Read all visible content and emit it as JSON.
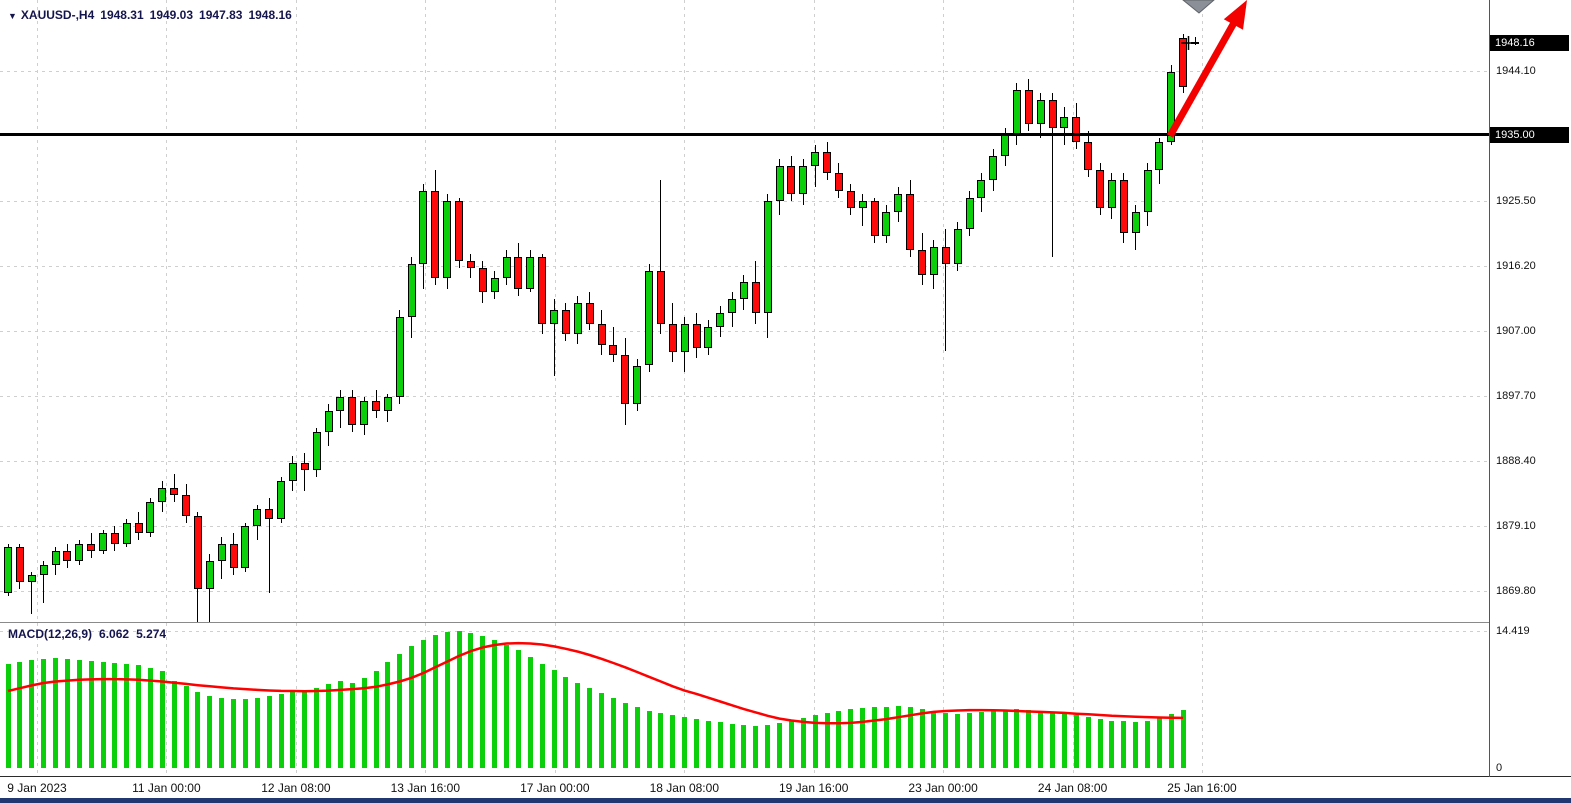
{
  "header": {
    "symbol_timeframe": "XAUUSD-,H4",
    "open": "1948.31",
    "high": "1949.03",
    "low": "1947.83",
    "close": "1948.16"
  },
  "macd": {
    "name": "MACD(12,26,9)",
    "value": "6.062",
    "signal": "5.274"
  },
  "price_axis": {
    "ticks": [
      "1944.10",
      "1925.50",
      "1916.20",
      "1907.00",
      "1897.70",
      "1888.40",
      "1879.10",
      "1869.80"
    ],
    "current_badge": "1948.16",
    "line_badge": "1935.00"
  },
  "macd_axis": {
    "ticks": [
      "14.419",
      "0"
    ]
  },
  "time_axis": {
    "labels": [
      "9 Jan 2023",
      "11 Jan 00:00",
      "12 Jan 08:00",
      "13 Jan 16:00",
      "17 Jan 00:00",
      "18 Jan 08:00",
      "19 Jan 16:00",
      "23 Jan 00:00",
      "24 Jan 08:00",
      "25 Jan 16:00"
    ]
  },
  "colors": {
    "up": "#0ccf0c",
    "down": "#ff0a0a",
    "wick": "#000000",
    "signal_line": "#ff0000",
    "arrow": "#f30000",
    "hline": "#000000",
    "grid": "#cfcfcf",
    "badge_bg": "#000000",
    "badge_text": "#ffffff",
    "title_text": "#15154e",
    "bottom_strip": "#21376f",
    "gray_pointer": "#8a8f98"
  },
  "chart_data": [
    {
      "type": "candlestick",
      "title": "XAUUSD- H4",
      "ylim": [
        1865.3,
        1954.3
      ],
      "y_ticks": [
        1944.1,
        1925.5,
        1916.2,
        1907.0,
        1897.7,
        1888.4,
        1879.1,
        1869.8
      ],
      "horizontal_line": 1935.0,
      "current_price": 1948.16,
      "current_bar": {
        "open": 1948.31,
        "high": 1949.03,
        "low": 1947.83,
        "close": 1948.16
      },
      "x_labels": [
        "9 Jan 2023",
        "11 Jan 00:00",
        "12 Jan 08:00",
        "13 Jan 16:00",
        "17 Jan 00:00",
        "18 Jan 08:00",
        "19 Jan 16:00",
        "23 Jan 00:00",
        "24 Jan 08:00",
        "25 Jan 16:00"
      ],
      "candles": [
        [
          1869.5,
          1876.5,
          1869.0,
          1876.0
        ],
        [
          1876.0,
          1876.5,
          1870.0,
          1871.0
        ],
        [
          1871.0,
          1872.5,
          1866.5,
          1872.0
        ],
        [
          1872.0,
          1874.0,
          1868.0,
          1873.5
        ],
        [
          1873.5,
          1876.0,
          1872.0,
          1875.5
        ],
        [
          1875.5,
          1876.5,
          1873.0,
          1874.0
        ],
        [
          1874.0,
          1877.0,
          1873.5,
          1876.5
        ],
        [
          1876.5,
          1878.0,
          1874.5,
          1875.5
        ],
        [
          1875.5,
          1878.5,
          1875.0,
          1878.0
        ],
        [
          1878.0,
          1879.0,
          1875.5,
          1876.5
        ],
        [
          1876.5,
          1880.0,
          1876.0,
          1879.5
        ],
        [
          1879.5,
          1881.0,
          1877.0,
          1878.0
        ],
        [
          1878.0,
          1883.0,
          1877.5,
          1882.5
        ],
        [
          1882.5,
          1885.5,
          1881.0,
          1884.5
        ],
        [
          1884.5,
          1886.5,
          1882.5,
          1883.5
        ],
        [
          1883.5,
          1885.0,
          1879.5,
          1880.5
        ],
        [
          1880.5,
          1881.0,
          1864.0,
          1870.0
        ],
        [
          1870.0,
          1875.0,
          1862.5,
          1874.0
        ],
        [
          1874.0,
          1877.5,
          1871.5,
          1876.5
        ],
        [
          1876.5,
          1878.0,
          1872.0,
          1873.0
        ],
        [
          1873.0,
          1879.5,
          1872.5,
          1879.0
        ],
        [
          1879.0,
          1882.0,
          1877.0,
          1881.5
        ],
        [
          1881.5,
          1883.0,
          1869.5,
          1880.0
        ],
        [
          1880.0,
          1886.0,
          1879.5,
          1885.5
        ],
        [
          1885.5,
          1889.0,
          1884.0,
          1888.0
        ],
        [
          1888.0,
          1889.5,
          1884.0,
          1887.0
        ],
        [
          1887.0,
          1893.0,
          1886.0,
          1892.5
        ],
        [
          1892.5,
          1896.5,
          1890.5,
          1895.5
        ],
        [
          1895.5,
          1898.5,
          1893.0,
          1897.5
        ],
        [
          1897.5,
          1898.5,
          1892.5,
          1893.5
        ],
        [
          1893.5,
          1897.5,
          1892.0,
          1897.0
        ],
        [
          1897.0,
          1898.5,
          1894.5,
          1895.5
        ],
        [
          1895.5,
          1898.0,
          1894.0,
          1897.5
        ],
        [
          1897.5,
          1910.0,
          1896.5,
          1909.0
        ],
        [
          1909.0,
          1917.5,
          1906.0,
          1916.5
        ],
        [
          1916.5,
          1928.0,
          1913.0,
          1927.0
        ],
        [
          1927.0,
          1930.0,
          1913.5,
          1914.5
        ],
        [
          1914.5,
          1926.5,
          1913.0,
          1925.5
        ],
        [
          1925.5,
          1926.0,
          1916.0,
          1917.0
        ],
        [
          1917.0,
          1918.0,
          1914.5,
          1916.0
        ],
        [
          1916.0,
          1917.0,
          1911.0,
          1912.5
        ],
        [
          1912.5,
          1915.5,
          1911.5,
          1914.5
        ],
        [
          1914.5,
          1918.5,
          1913.5,
          1917.5
        ],
        [
          1917.5,
          1919.5,
          1912.0,
          1913.0
        ],
        [
          1913.0,
          1918.5,
          1912.5,
          1917.5
        ],
        [
          1917.5,
          1918.0,
          1906.5,
          1908.0
        ],
        [
          1908.0,
          1911.5,
          1900.5,
          1910.0
        ],
        [
          1910.0,
          1911.0,
          1905.5,
          1906.5
        ],
        [
          1906.5,
          1912.0,
          1905.0,
          1911.0
        ],
        [
          1911.0,
          1912.5,
          1907.0,
          1908.0
        ],
        [
          1908.0,
          1910.0,
          1903.5,
          1905.0
        ],
        [
          1905.0,
          1907.5,
          1902.5,
          1903.5
        ],
        [
          1903.5,
          1906.0,
          1893.5,
          1896.5
        ],
        [
          1896.5,
          1903.0,
          1895.5,
          1902.0
        ],
        [
          1902.0,
          1916.5,
          1901.0,
          1915.5
        ],
        [
          1915.5,
          1928.5,
          1906.5,
          1908.0
        ],
        [
          1908.0,
          1911.0,
          1902.5,
          1904.0
        ],
        [
          1904.0,
          1909.0,
          1901.0,
          1908.0
        ],
        [
          1908.0,
          1909.5,
          1903.0,
          1904.5
        ],
        [
          1904.5,
          1908.5,
          1903.5,
          1907.5
        ],
        [
          1907.5,
          1910.5,
          1906.0,
          1909.5
        ],
        [
          1909.5,
          1912.5,
          1907.5,
          1911.5
        ],
        [
          1911.5,
          1915.0,
          1910.0,
          1914.0
        ],
        [
          1914.0,
          1917.0,
          1908.0,
          1909.5
        ],
        [
          1909.5,
          1926.5,
          1906.0,
          1925.5
        ],
        [
          1925.5,
          1931.5,
          1923.5,
          1930.5
        ],
        [
          1930.5,
          1932.0,
          1925.5,
          1926.5
        ],
        [
          1926.5,
          1931.5,
          1925.0,
          1930.5
        ],
        [
          1930.5,
          1933.5,
          1927.5,
          1932.5
        ],
        [
          1932.5,
          1934.0,
          1928.5,
          1929.5
        ],
        [
          1929.5,
          1931.0,
          1926.0,
          1927.0
        ],
        [
          1927.0,
          1928.0,
          1923.5,
          1924.5
        ],
        [
          1924.5,
          1926.5,
          1922.0,
          1925.5
        ],
        [
          1925.5,
          1926.0,
          1919.5,
          1920.5
        ],
        [
          1920.5,
          1925.0,
          1919.5,
          1924.0
        ],
        [
          1924.0,
          1927.5,
          1922.5,
          1926.5
        ],
        [
          1926.5,
          1928.5,
          1917.5,
          1918.5
        ],
        [
          1918.5,
          1921.0,
          1913.5,
          1915.0
        ],
        [
          1915.0,
          1920.0,
          1913.0,
          1919.0
        ],
        [
          1919.0,
          1921.5,
          1904.0,
          1916.5
        ],
        [
          1916.5,
          1922.5,
          1915.5,
          1921.5
        ],
        [
          1921.5,
          1927.0,
          1920.5,
          1926.0
        ],
        [
          1926.0,
          1929.5,
          1924.0,
          1928.5
        ],
        [
          1928.5,
          1933.0,
          1927.0,
          1932.0
        ],
        [
          1932.0,
          1936.0,
          1930.5,
          1935.0
        ],
        [
          1935.0,
          1942.5,
          1933.5,
          1941.5
        ],
        [
          1941.5,
          1943.0,
          1935.5,
          1936.5
        ],
        [
          1936.5,
          1941.0,
          1934.5,
          1940.0
        ],
        [
          1940.0,
          1941.0,
          1917.5,
          1936.0
        ],
        [
          1936.0,
          1939.0,
          1933.5,
          1937.5
        ],
        [
          1937.5,
          1939.5,
          1933.0,
          1934.0
        ],
        [
          1934.0,
          1935.5,
          1929.0,
          1930.0
        ],
        [
          1930.0,
          1931.0,
          1923.5,
          1924.5
        ],
        [
          1924.5,
          1929.5,
          1923.0,
          1928.5
        ],
        [
          1928.5,
          1929.5,
          1919.5,
          1921.0
        ],
        [
          1921.0,
          1925.0,
          1918.5,
          1924.0
        ],
        [
          1924.0,
          1931.0,
          1922.0,
          1930.0
        ],
        [
          1930.0,
          1934.5,
          1928.0,
          1934.0
        ],
        [
          1934.0,
          1945.0,
          1933.5,
          1944.0
        ],
        [
          1948.9,
          1949.5,
          1941.0,
          1941.8
        ],
        [
          1948.31,
          1949.03,
          1947.83,
          1948.16
        ]
      ]
    },
    {
      "type": "bar",
      "name": "MACD(12,26,9)",
      "ylim": [
        0,
        14.419
      ],
      "ticks": [
        14.419,
        0
      ],
      "current": {
        "macd": 6.062,
        "signal": 5.274
      },
      "histogram": [
        11.0,
        11.2,
        11.4,
        11.5,
        11.6,
        11.5,
        11.4,
        11.3,
        11.2,
        11.1,
        11.0,
        10.8,
        10.5,
        10.2,
        9.2,
        8.6,
        8.0,
        7.6,
        7.4,
        7.3,
        7.3,
        7.4,
        7.6,
        7.8,
        8.1,
        8.0,
        8.4,
        8.8,
        9.2,
        9.0,
        9.5,
        10.2,
        11.2,
        12.0,
        12.8,
        13.5,
        14.0,
        14.3,
        14.419,
        14.2,
        13.9,
        13.5,
        13.0,
        12.4,
        11.7,
        11.0,
        10.3,
        9.6,
        9.0,
        8.4,
        7.9,
        7.4,
        6.9,
        6.4,
        6.0,
        5.8,
        5.6,
        5.4,
        5.2,
        5.0,
        4.8,
        4.6,
        4.5,
        4.4,
        4.5,
        4.7,
        5.0,
        5.3,
        5.6,
        5.8,
        6.0,
        6.2,
        6.3,
        6.4,
        6.4,
        6.5,
        6.4,
        6.2,
        6.0,
        5.8,
        5.7,
        5.8,
        5.9,
        6.0,
        6.1,
        6.2,
        6.1,
        6.0,
        5.9,
        5.8,
        5.6,
        5.4,
        5.2,
        5.0,
        4.9,
        4.8,
        5.0,
        5.3,
        5.7,
        6.062
      ],
      "signal": [
        8.1,
        8.4,
        8.7,
        8.95,
        9.1,
        9.2,
        9.28,
        9.33,
        9.36,
        9.36,
        9.33,
        9.28,
        9.2,
        9.1,
        8.98,
        8.85,
        8.72,
        8.6,
        8.48,
        8.38,
        8.3,
        8.22,
        8.16,
        8.12,
        8.1,
        8.08,
        8.1,
        8.15,
        8.22,
        8.3,
        8.4,
        8.55,
        8.8,
        9.1,
        9.5,
        10.0,
        10.6,
        11.2,
        11.8,
        12.3,
        12.7,
        12.95,
        13.1,
        13.15,
        13.1,
        13.0,
        12.8,
        12.55,
        12.25,
        11.9,
        11.5,
        11.05,
        10.6,
        10.1,
        9.6,
        9.1,
        8.6,
        8.15,
        7.8,
        7.4,
        7.0,
        6.6,
        6.2,
        5.85,
        5.5,
        5.2,
        5.0,
        4.85,
        4.75,
        4.7,
        4.7,
        4.75,
        4.85,
        5.0,
        5.15,
        5.35,
        5.55,
        5.75,
        5.9,
        6.0,
        6.05,
        6.1,
        6.1,
        6.08,
        6.05,
        6.0,
        5.95,
        5.9,
        5.85,
        5.8,
        5.72,
        5.65,
        5.58,
        5.5,
        5.45,
        5.4,
        5.36,
        5.32,
        5.29,
        5.274
      ]
    }
  ]
}
